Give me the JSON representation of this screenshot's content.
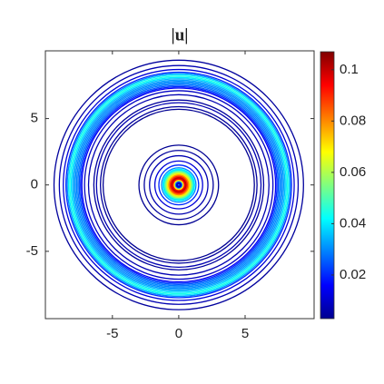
{
  "chart_data": {
    "type": "contour",
    "title": "|u|",
    "xlim": [
      -10.05,
      10.2
    ],
    "ylim": [
      -10.07,
      10.1
    ],
    "xticks": [
      -5,
      0,
      5
    ],
    "yticks": [
      -5,
      0,
      5
    ],
    "clim": [
      0.003,
      0.107
    ],
    "cticks": [
      0.02,
      0.04,
      0.06,
      0.08,
      0.1
    ],
    "rings": {
      "radius": [
        9.4,
        9.0,
        8.7,
        8.5,
        8.4,
        8.3,
        8.2,
        8.1,
        8.0,
        7.9,
        7.8,
        7.7,
        7.6,
        7.5,
        7.4,
        7.3,
        7.1,
        6.8,
        6.4,
        6.2,
        5.9,
        5.7,
        3.0,
        2.6,
        2.2,
        1.8,
        1.5,
        1.3,
        1.1,
        0.95,
        0.85,
        0.75,
        0.65,
        0.55,
        0.45,
        0.35,
        0.25,
        0.15,
        0.08
      ],
      "values": [
        0.006,
        0.008,
        0.012,
        0.02,
        0.03,
        0.04,
        0.045,
        0.04,
        0.035,
        0.032,
        0.03,
        0.03,
        0.028,
        0.025,
        0.02,
        0.015,
        0.01,
        0.008,
        0.006,
        0.008,
        0.006,
        0.005,
        0.005,
        0.006,
        0.008,
        0.012,
        0.02,
        0.03,
        0.04,
        0.05,
        0.06,
        0.07,
        0.08,
        0.09,
        0.1,
        0.095,
        0.07,
        0.03,
        0.01
      ]
    }
  }
}
